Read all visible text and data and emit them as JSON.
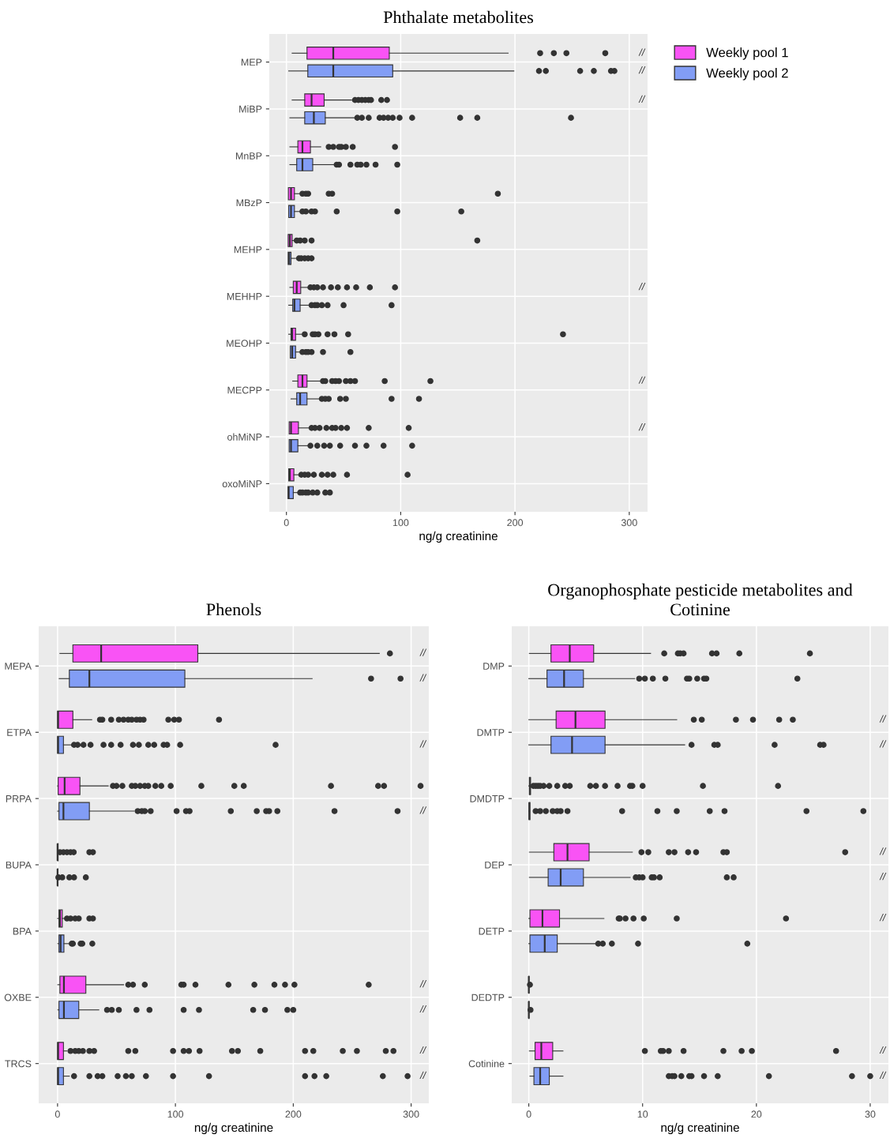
{
  "chart_data": [
    {
      "type": "box",
      "title": "Phthalate metabolites",
      "xlabel": "ng/g creatinine",
      "orientation": "horizontal",
      "grid": true,
      "legend": "top right",
      "marker": "circle",
      "xlim": [
        -15,
        316
      ],
      "xticks": [
        0,
        100,
        200,
        300
      ],
      "categories": [
        "MEP",
        "MiBP",
        "MnBP",
        "MBzP",
        "MEHP",
        "MEHHP",
        "MEOHP",
        "MECPP",
        "ohMiNP",
        "oxoMiNP"
      ],
      "series": [
        {
          "name": "Weekly pool 1",
          "color": "#f953f5",
          "boxes": [
            {
              "low": 5,
              "q1": 18,
              "median": 41,
              "q3": 90,
              "high": 194,
              "outliers": [
                222,
                234,
                245,
                279
              ]
            },
            {
              "low": 5,
              "q1": 16,
              "median": 22,
              "q3": 33,
              "high": 57,
              "outliers": [
                60,
                63,
                66,
                69,
                72,
                74,
                83,
                88
              ]
            },
            {
              "low": 3,
              "q1": 10,
              "median": 14,
              "q3": 21,
              "high": 30,
              "outliers": [
                37,
                41,
                46,
                48,
                52,
                58,
                95
              ]
            },
            {
              "low": 1.7,
              "q1": 1.7,
              "median": 4,
              "q3": 7,
              "high": 13,
              "outliers": [
                14,
                17,
                19,
                37,
                40,
                185
              ]
            },
            {
              "low": 1.5,
              "q1": 1.5,
              "median": 3,
              "q3": 5,
              "high": 7,
              "outliers": [
                9,
                12,
                16,
                22,
                167
              ]
            },
            {
              "low": 3,
              "q1": 6,
              "median": 9,
              "q3": 12.5,
              "high": 20,
              "outliers": [
                21,
                24,
                27,
                32,
                39,
                45,
                53,
                61,
                73,
                95
              ]
            },
            {
              "low": 2,
              "q1": 4,
              "median": 5,
              "q3": 8,
              "high": 13,
              "outliers": [
                16,
                23,
                25,
                28,
                36,
                42,
                54,
                242
              ]
            },
            {
              "low": 5.5,
              "q1": 10,
              "median": 14,
              "q3": 18,
              "high": 30,
              "outliers": [
                32,
                34,
                40,
                43,
                46,
                52,
                56,
                60,
                86,
                126
              ]
            },
            {
              "low": 2.4,
              "q1": 2.4,
              "median": 4,
              "q3": 10.5,
              "high": 20,
              "outliers": [
                22,
                25,
                29,
                35,
                40,
                43,
                48,
                53,
                72,
                107
              ]
            },
            {
              "low": 2,
              "q1": 2,
              "median": 3,
              "q3": 6.5,
              "high": 12,
              "outliers": [
                13,
                16,
                19,
                24,
                31,
                36,
                41,
                53,
                106
              ]
            }
          ]
        },
        {
          "name": "Weekly pool 2",
          "color": "#829df5",
          "boxes": [
            {
              "low": 2,
              "q1": 18.7,
              "median": 41,
              "q3": 93,
              "high": 199,
              "outliers": [
                221,
                227,
                257,
                269,
                284,
                287
              ]
            },
            {
              "low": 3,
              "q1": 16,
              "median": 24,
              "q3": 34,
              "high": 60,
              "outliers": [
                62,
                66,
                72,
                81.5,
                85,
                89,
                93,
                99,
                110,
                152,
                167,
                249
              ]
            },
            {
              "low": 3,
              "q1": 9,
              "median": 14,
              "q3": 23,
              "high": 42,
              "outliers": [
                44,
                46,
                56,
                62,
                65,
                70,
                78,
                97
              ]
            },
            {
              "low": 2,
              "q1": 2,
              "median": 4,
              "q3": 7,
              "high": 12,
              "outliers": [
                14,
                17,
                22,
                25,
                44,
                97,
                153
              ]
            },
            {
              "low": 1.5,
              "q1": 1.5,
              "median": 2.4,
              "q3": 4,
              "high": 8,
              "outliers": [
                11,
                13,
                16,
                19,
                22
              ]
            },
            {
              "low": 2,
              "q1": 5.5,
              "median": 7,
              "q3": 12,
              "high": 20,
              "outliers": [
                22,
                25,
                27,
                31,
                36,
                50,
                92
              ]
            },
            {
              "low": 3.4,
              "q1": 3.4,
              "median": 5,
              "q3": 8,
              "high": 13,
              "outliers": [
                14,
                17,
                19,
                22,
                32,
                56
              ]
            },
            {
              "low": 4,
              "q1": 9,
              "median": 12,
              "q3": 18,
              "high": 29,
              "outliers": [
                31,
                34,
                37,
                47,
                52,
                92,
                116
              ]
            },
            {
              "low": 2.4,
              "q1": 2.4,
              "median": 4,
              "q3": 10,
              "high": 20,
              "outliers": [
                21,
                27,
                33,
                38,
                47,
                60,
                70,
                85,
                110
              ]
            },
            {
              "low": 1.4,
              "q1": 1.4,
              "median": 2,
              "q3": 6,
              "high": 10,
              "outliers": [
                12,
                14,
                17,
                19,
                23,
                27,
                34,
                38
              ]
            }
          ]
        }
      ],
      "annotations": [
        "//",
        "//",
        "//",
        "//",
        "//",
        "//"
      ]
    },
    {
      "type": "box",
      "title": "Phenols",
      "xlabel": "ng/g creatinine",
      "orientation": "horizontal",
      "grid": true,
      "marker": "circle",
      "xlim": [
        -16,
        315
      ],
      "xticks": [
        0,
        100,
        200,
        300
      ],
      "categories": [
        "MEPA",
        "ETPA",
        "PRPA",
        "BUPA",
        "BPA",
        "OXBE",
        "TRCS"
      ],
      "series": [
        {
          "color": "#f953f5",
          "boxes": [
            {
              "low": 2,
              "q1": 13,
              "median": 37,
              "q3": 119,
              "high": 273,
              "outliers": [
                282
              ]
            },
            {
              "low": 0,
              "q1": 0,
              "median": 0.5,
              "q3": 13,
              "high": 29,
              "outliers": [
                36,
                38,
                45.5,
                52,
                56,
                60,
                63,
                67,
                70,
                73,
                94,
                99,
                103,
                137
              ]
            },
            {
              "low": 0,
              "q1": 0.5,
              "median": 6,
              "q3": 19,
              "high": 43,
              "outliers": [
                47,
                50,
                55,
                63,
                66,
                70,
                74,
                77,
                83,
                88,
                96,
                122,
                150,
                158,
                232,
                272,
                277,
                308
              ]
            },
            {
              "low": 0,
              "q1": 0,
              "median": 0,
              "q3": 0.5,
              "high": 1,
              "outliers": [
                2,
                5,
                8,
                11,
                13.7,
                27,
                30
              ]
            },
            {
              "low": 0,
              "q1": 1.2,
              "median": 2,
              "q3": 4,
              "high": 6.6,
              "outliers": [
                8,
                11,
                15,
                18,
                27,
                30
              ]
            },
            {
              "low": 0.2,
              "q1": 2,
              "median": 5.4,
              "q3": 24,
              "high": 56,
              "outliers": [
                60,
                64,
                74,
                105,
                107,
                117,
                145,
                167,
                184,
                193,
                201,
                264
              ]
            },
            {
              "low": 0,
              "q1": 0,
              "median": 0.5,
              "q3": 5,
              "high": 8,
              "outliers": [
                11,
                15,
                18,
                21.5,
                27,
                31,
                60,
                66,
                98,
                107,
                111.5,
                120.5,
                148,
                153,
                172,
                210,
                217,
                242,
                254,
                278.5,
                285
              ]
            }
          ]
        },
        {
          "color": "#829df5",
          "boxes": [
            {
              "low": 1.4,
              "q1": 10,
              "median": 27,
              "q3": 108,
              "high": 216,
              "outliers": [
                266,
                291
              ]
            },
            {
              "low": 0,
              "q1": 0,
              "median": 0.5,
              "q3": 5,
              "high": 12,
              "outliers": [
                14,
                17,
                22,
                28,
                39,
                45.5,
                53.5,
                64,
                69,
                77,
                82,
                90,
                93,
                104,
                185
              ]
            },
            {
              "low": 0,
              "q1": 1.2,
              "median": 5,
              "q3": 27,
              "high": 65,
              "outliers": [
                68,
                71.5,
                74,
                79,
                101,
                109,
                112,
                147,
                169,
                177,
                179.5,
                186.5,
                235,
                288.5
              ]
            },
            {
              "low": 0,
              "q1": 0,
              "median": 0,
              "q3": 0.3,
              "high": 0.5,
              "outliers": [
                0.7,
                4,
                10,
                14,
                24
              ]
            },
            {
              "low": 0.2,
              "q1": 1.2,
              "median": 2.6,
              "q3": 5.4,
              "high": 9.7,
              "outliers": [
                12,
                13,
                19.6,
                21,
                29.5
              ]
            },
            {
              "low": 0.2,
              "q1": 1.2,
              "median": 5.4,
              "q3": 18,
              "high": 35,
              "outliers": [
                42,
                46,
                52,
                67,
                78,
                107,
                120,
                166,
                176,
                195,
                200
              ]
            },
            {
              "low": 0,
              "q1": 0,
              "median": 0.5,
              "q3": 5,
              "high": 10,
              "outliers": [
                14,
                27,
                34,
                38,
                51,
                58,
                63,
                75,
                98,
                128.5,
                210,
                218,
                228,
                276,
                297
              ]
            }
          ]
        }
      ],
      "annotations": [
        "//",
        "//",
        "//",
        "//",
        "//",
        "//",
        "//",
        "//"
      ]
    },
    {
      "type": "box",
      "title": "Organophosphate pesticide metabolites and Cotinine",
      "xlabel": "ng/g creatinine",
      "orientation": "horizontal",
      "grid": true,
      "marker": "circle",
      "xlim": [
        -1.5,
        31.6
      ],
      "xticks": [
        0,
        10,
        20,
        30
      ],
      "categories": [
        "DMP",
        "DMTP",
        "DMDTP",
        "DEP",
        "DETP",
        "DEDTP",
        "Cotinine"
      ],
      "series": [
        {
          "color": "#f953f5",
          "boxes": [
            {
              "low": 0.05,
              "q1": 1.95,
              "median": 3.6,
              "q3": 5.7,
              "high": 10.7,
              "outliers": [
                11.9,
                13.1,
                13.3,
                13.6,
                16.1,
                16.5,
                18.5,
                24.7
              ]
            },
            {
              "low": 0,
              "q1": 2.4,
              "median": 4.1,
              "q3": 6.7,
              "high": 13,
              "outliers": [
                14.5,
                15.2,
                18.2,
                19.7,
                22,
                23.2
              ]
            },
            {
              "low": 0,
              "q1": 0.05,
              "median": 0.1,
              "q3": 0.15,
              "high": 0.2,
              "outliers": [
                0.4,
                0.6,
                0.8,
                1,
                1.3,
                1.8,
                2.5,
                3.2,
                3.6,
                5.4,
                5.9,
                6.7,
                7.8,
                8.9,
                9.1,
                10,
                15.3,
                21.9
              ]
            },
            {
              "low": 0.05,
              "q1": 2.2,
              "median": 3.4,
              "q3": 5.3,
              "high": 9.1,
              "outliers": [
                9.9,
                10.5,
                12.3,
                12.8,
                14,
                14.7,
                17.1,
                17.4,
                27.8
              ]
            },
            {
              "low": 0,
              "q1": 0.1,
              "median": 1.2,
              "q3": 2.7,
              "high": 6.6,
              "outliers": [
                7.9,
                8,
                8.5,
                9.2,
                10.1,
                13,
                22.6
              ]
            },
            {
              "low": 0,
              "q1": 0,
              "median": 0,
              "q3": 0.02,
              "high": 0.05,
              "outliers": [
                0.1
              ]
            },
            {
              "low": 0.05,
              "q1": 0.55,
              "median": 1.1,
              "q3": 2.1,
              "high": 3,
              "outliers": [
                10.2,
                11.6,
                11.8,
                12.3,
                13.6,
                17.1,
                18.7,
                19.6,
                27
              ]
            }
          ]
        },
        {
          "color": "#829df5",
          "boxes": [
            {
              "low": 0,
              "q1": 1.6,
              "median": 3.1,
              "q3": 4.8,
              "high": 9.3,
              "outliers": [
                9.7,
                10.2,
                10.9,
                12,
                13.9,
                14.1,
                14.8,
                15.4,
                15.6,
                23.6
              ]
            },
            {
              "low": 0,
              "q1": 1.95,
              "median": 3.8,
              "q3": 6.7,
              "high": 13.7,
              "outliers": [
                14.3,
                16.3,
                16.6,
                21.6,
                25.6,
                25.9
              ]
            },
            {
              "low": 0,
              "q1": 0.02,
              "median": 0.05,
              "q3": 0.1,
              "high": 0.1,
              "outliers": [
                0.6,
                1,
                1.5,
                2.1,
                2.5,
                2.8,
                3.4,
                8.2,
                11.3,
                13,
                15.9,
                17.2,
                24.4,
                29.4
              ]
            },
            {
              "low": 0.05,
              "q1": 1.7,
              "median": 2.8,
              "q3": 4.8,
              "high": 8.9,
              "outliers": [
                9.4,
                9.7,
                10,
                10.8,
                11,
                11.5,
                17.4,
                18
              ]
            },
            {
              "low": 0,
              "q1": 0.1,
              "median": 1.4,
              "q3": 2.5,
              "high": 6,
              "outliers": [
                6.1,
                6.5,
                7.3,
                9.6,
                19.2
              ]
            },
            {
              "low": 0,
              "q1": 0,
              "median": 0,
              "q3": 0.02,
              "high": 0.05,
              "outliers": [
                0.15
              ]
            },
            {
              "low": 0.1,
              "q1": 0.45,
              "median": 1,
              "q3": 1.8,
              "high": 3,
              "outliers": [
                12.3,
                12.6,
                12.8,
                13.4,
                14.1,
                14.3,
                15.4,
                16.6,
                21.1,
                28.4,
                30
              ]
            }
          ]
        }
      ],
      "annotations": [
        "//",
        "//",
        "//",
        "//",
        "//",
        "//",
        "//"
      ]
    }
  ]
}
